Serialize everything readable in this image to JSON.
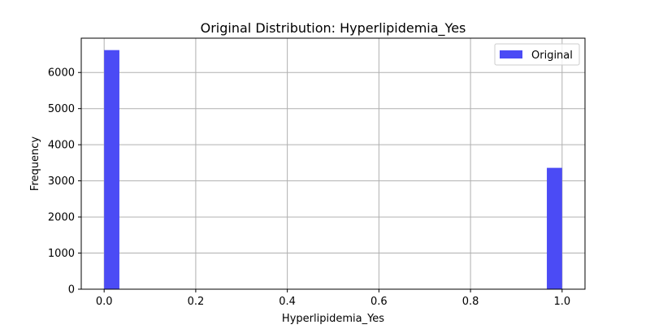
{
  "chart_data": {
    "type": "bar",
    "title": "Original Distribution: Hyperlipidemia_Yes",
    "xlabel": "Hyperlipidemia_Yes",
    "ylabel": "Frequency",
    "xlim": [
      -0.05,
      1.05
    ],
    "ylim": [
      0,
      6950
    ],
    "xticks": [
      0.0,
      0.2,
      0.4,
      0.6,
      0.8,
      1.0
    ],
    "xtick_labels": [
      "0.0",
      "0.2",
      "0.4",
      "0.6",
      "0.8",
      "1.0"
    ],
    "yticks": [
      0,
      1000,
      2000,
      3000,
      4000,
      5000,
      6000
    ],
    "ytick_labels": [
      "0",
      "1000",
      "2000",
      "3000",
      "4000",
      "5000",
      "6000"
    ],
    "grid": true,
    "legend_position": "top-right",
    "series": [
      {
        "name": "Original",
        "color": "#4b4bf5",
        "bins": [
          {
            "x0": 0.0,
            "x1": 0.0333,
            "value": 6620
          },
          {
            "x0": 0.9667,
            "x1": 1.0,
            "value": 3360
          }
        ]
      }
    ]
  }
}
